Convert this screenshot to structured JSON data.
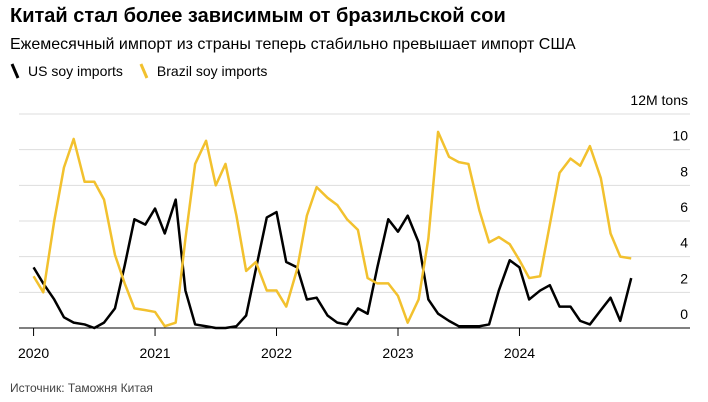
{
  "chart_data": {
    "type": "line",
    "title": "Китай стал более зависимым от бразильской сои",
    "subtitle": "Ежемесячный импорт из страны теперь стабильно превышает импорт США",
    "source": "Источник: Таможня Китая",
    "x": [
      2020.0,
      2020.08,
      2020.17,
      2020.25,
      2020.33,
      2020.42,
      2020.5,
      2020.58,
      2020.67,
      2020.75,
      2020.83,
      2020.92,
      2021.0,
      2021.08,
      2021.17,
      2021.25,
      2021.33,
      2021.42,
      2021.5,
      2021.58,
      2021.67,
      2021.75,
      2021.83,
      2021.92,
      2022.0,
      2022.08,
      2022.17,
      2022.25,
      2022.33,
      2022.42,
      2022.5,
      2022.58,
      2022.67,
      2022.75,
      2022.83,
      2022.92,
      2023.0,
      2023.08,
      2023.17,
      2023.25,
      2023.33,
      2023.42,
      2023.5,
      2023.58,
      2023.67,
      2023.75,
      2023.83,
      2023.92,
      2024.0,
      2024.08,
      2024.17,
      2024.25,
      2024.33,
      2024.42,
      2024.5,
      2024.58,
      2024.67,
      2024.75,
      2024.83,
      2024.92
    ],
    "series": [
      {
        "name": "US soy imports",
        "color": "#000000",
        "values": [
          3.4,
          2.5,
          1.6,
          0.6,
          0.3,
          0.2,
          0.0,
          0.3,
          1.1,
          3.5,
          6.1,
          5.8,
          6.7,
          5.3,
          7.2,
          2.1,
          0.2,
          0.1,
          0.0,
          0.0,
          0.1,
          0.7,
          3.3,
          6.2,
          6.5,
          3.7,
          3.4,
          1.6,
          1.7,
          0.7,
          0.3,
          0.2,
          1.1,
          0.8,
          3.4,
          6.1,
          5.4,
          6.3,
          4.8,
          1.6,
          0.8,
          0.4,
          0.1,
          0.1,
          0.1,
          0.2,
          2.1,
          3.8,
          3.4,
          1.6,
          2.1,
          2.4,
          1.2,
          1.2,
          0.4,
          0.2,
          1.0,
          1.7,
          0.4,
          2.8
        ]
      },
      {
        "name": "Brazil soy imports",
        "color": "#f2c12e",
        "values": [
          2.9,
          2.0,
          6.0,
          9.0,
          10.6,
          8.2,
          8.2,
          7.2,
          4.1,
          2.5,
          1.1,
          1.0,
          0.9,
          0.1,
          0.3,
          5.0,
          9.2,
          10.5,
          8.0,
          9.2,
          6.3,
          3.2,
          3.7,
          2.1,
          2.1,
          1.2,
          3.3,
          6.3,
          7.9,
          7.3,
          6.9,
          6.1,
          5.5,
          2.8,
          2.5,
          2.5,
          1.8,
          0.3,
          1.6,
          5.0,
          11.0,
          9.6,
          9.3,
          9.2,
          6.6,
          4.8,
          5.1,
          4.7,
          3.8,
          2.8,
          2.9,
          5.8,
          8.7,
          9.5,
          9.1,
          10.2,
          8.4,
          5.3,
          4.0,
          3.9
        ]
      }
    ],
    "xlim": [
      2019.88,
      2025.05
    ],
    "xticks": [
      2020,
      2021,
      2022,
      2023,
      2024
    ],
    "ylim": [
      0,
      12
    ],
    "yticks": [
      0,
      2,
      4,
      6,
      8,
      10,
      {
        "value": 12,
        "label": "12M tons"
      }
    ],
    "grid": true
  }
}
